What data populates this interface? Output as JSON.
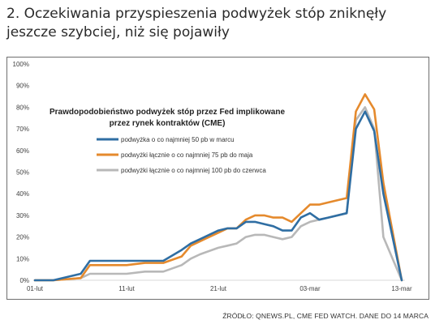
{
  "heading": "2. Oczekiwania przyspieszenia podwyżek stóp zniknęły jeszcze szybciej, niż się pojawiły",
  "source": "ŹRÓDŁO: QNEWS.PL, CME FED WATCH. DANE DO 14 MARCA",
  "chart_data": {
    "type": "line",
    "title": "Prawdopodobieństwo podwyżek stóp przez Fed implikowane przez rynek kontraktów (CME)",
    "title_lines": [
      "Prawdopodobieństwo podwyżek stóp przez Fed implikowane",
      "przez rynek kontraktów (CME)"
    ],
    "xlabel": "",
    "ylabel": "",
    "y_ticks": [
      "0%",
      "10%",
      "20%",
      "30%",
      "40%",
      "50%",
      "60%",
      "70%",
      "80%",
      "90%",
      "100%"
    ],
    "ylim": [
      0,
      100
    ],
    "x_ticks": [
      "01-lut",
      "11-lut",
      "21-lut",
      "03-mar",
      "13-mar"
    ],
    "x_tick_days": [
      0,
      10,
      20,
      30,
      40
    ],
    "xlim": [
      0,
      40
    ],
    "grid": false,
    "legend_position": "upper-left",
    "series": [
      {
        "name": "podwyżka o co najmniej 50 pb w marcu",
        "color": "#2f6ea3",
        "points": [
          [
            0,
            0
          ],
          [
            2,
            0
          ],
          [
            5,
            3
          ],
          [
            6,
            9
          ],
          [
            8,
            9
          ],
          [
            10,
            9
          ],
          [
            12,
            9
          ],
          [
            14,
            9
          ],
          [
            16,
            14
          ],
          [
            17,
            17
          ],
          [
            18,
            19
          ],
          [
            20,
            23
          ],
          [
            21,
            24
          ],
          [
            22,
            24
          ],
          [
            23,
            27
          ],
          [
            24,
            27
          ],
          [
            25,
            26
          ],
          [
            26,
            25
          ],
          [
            27,
            23
          ],
          [
            28,
            23
          ],
          [
            29,
            29
          ],
          [
            30,
            31
          ],
          [
            31,
            28
          ],
          [
            32,
            29
          ],
          [
            34,
            31
          ],
          [
            35,
            70
          ],
          [
            36,
            78
          ],
          [
            37,
            69
          ],
          [
            38,
            40
          ],
          [
            40,
            0
          ]
        ]
      },
      {
        "name": "podwyżki łącznie o co najmniej 75 pb do maja",
        "color": "#e58a2d",
        "points": [
          [
            0,
            0
          ],
          [
            2,
            0
          ],
          [
            5,
            1
          ],
          [
            6,
            7
          ],
          [
            8,
            7
          ],
          [
            10,
            7
          ],
          [
            12,
            8
          ],
          [
            14,
            8
          ],
          [
            16,
            11
          ],
          [
            17,
            16
          ],
          [
            18,
            18
          ],
          [
            20,
            22
          ],
          [
            21,
            24
          ],
          [
            22,
            24
          ],
          [
            23,
            28
          ],
          [
            24,
            30
          ],
          [
            25,
            30
          ],
          [
            26,
            29
          ],
          [
            27,
            29
          ],
          [
            28,
            27
          ],
          [
            29,
            31
          ],
          [
            30,
            35
          ],
          [
            31,
            35
          ],
          [
            32,
            36
          ],
          [
            34,
            38
          ],
          [
            35,
            78
          ],
          [
            36,
            86
          ],
          [
            37,
            79
          ],
          [
            38,
            45
          ],
          [
            40,
            0
          ]
        ]
      },
      {
        "name": "podwyżki łącznie o co najmniej 100 pb do czerwca",
        "color": "#b8b8b8",
        "points": [
          [
            0,
            0
          ],
          [
            2,
            0
          ],
          [
            5,
            1
          ],
          [
            6,
            3
          ],
          [
            8,
            3
          ],
          [
            10,
            3
          ],
          [
            12,
            4
          ],
          [
            14,
            4
          ],
          [
            16,
            7
          ],
          [
            17,
            10
          ],
          [
            18,
            12
          ],
          [
            20,
            15
          ],
          [
            21,
            16
          ],
          [
            22,
            17
          ],
          [
            23,
            20
          ],
          [
            24,
            21
          ],
          [
            25,
            21
          ],
          [
            26,
            20
          ],
          [
            27,
            19
          ],
          [
            28,
            20
          ],
          [
            29,
            25
          ],
          [
            30,
            27
          ],
          [
            31,
            28
          ],
          [
            32,
            29
          ],
          [
            34,
            31
          ],
          [
            35,
            74
          ],
          [
            36,
            80
          ],
          [
            37,
            70
          ],
          [
            38,
            20
          ],
          [
            40,
            0
          ]
        ]
      }
    ]
  }
}
